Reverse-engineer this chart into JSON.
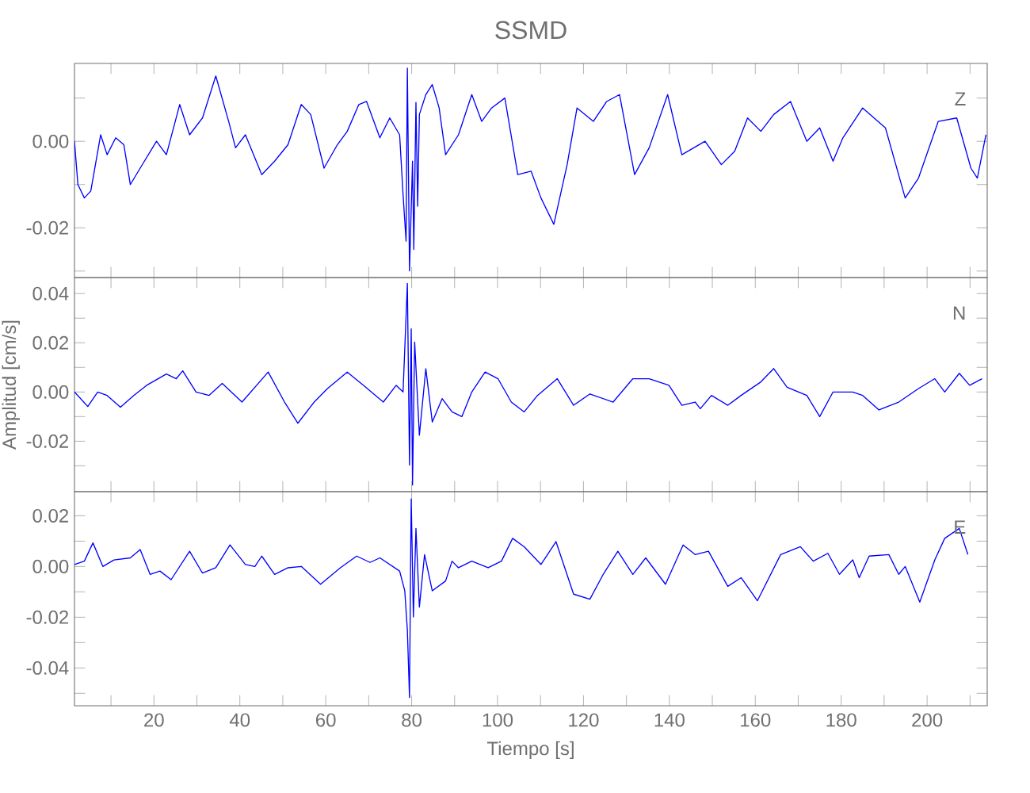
{
  "chart_data": [
    {
      "type": "line",
      "title": "SSMD",
      "annotations": [
        "Z"
      ],
      "color": "#0000ff",
      "tick_labels": "y",
      "xlim": [
        1.5,
        214
      ],
      "ylim": [
        -0.0315,
        0.018
      ],
      "xticks": [
        {
          "value": 10,
          "label": null
        },
        {
          "value": 20,
          "label": null
        },
        {
          "value": 30,
          "label": null
        },
        {
          "value": 40,
          "label": null
        },
        {
          "value": 50,
          "label": null
        },
        {
          "value": 60,
          "label": null
        },
        {
          "value": 70,
          "label": null
        },
        {
          "value": 80,
          "label": null
        },
        {
          "value": 90,
          "label": null
        },
        {
          "value": 100,
          "label": null
        },
        {
          "value": 110,
          "label": null
        },
        {
          "value": 120,
          "label": null
        },
        {
          "value": 130,
          "label": null
        },
        {
          "value": 140,
          "label": null
        },
        {
          "value": 150,
          "label": null
        },
        {
          "value": 160,
          "label": null
        },
        {
          "value": 170,
          "label": null
        },
        {
          "value": 180,
          "label": null
        },
        {
          "value": 190,
          "label": null
        },
        {
          "value": 200,
          "label": null
        },
        {
          "value": 210,
          "label": null
        }
      ],
      "yticks": [
        {
          "value": -0.03,
          "label": null
        },
        {
          "value": -0.02,
          "label": "-0.02"
        },
        {
          "value": -0.01,
          "label": null
        },
        {
          "value": 0,
          "label": "0.00"
        },
        {
          "value": 0.01,
          "label": null
        }
      ],
      "x": [
        1.5,
        2.3,
        3.8,
        5.3,
        7.6,
        9.1,
        11.1,
        13.0,
        14.5,
        16.8,
        20.6,
        22.9,
        26.0,
        28.3,
        31.3,
        34.4,
        37.4,
        39.0,
        41.3,
        45.1,
        48.1,
        51.2,
        54.3,
        56.5,
        59.6,
        62.7,
        65.0,
        67.7,
        69.5,
        72.6,
        74.9,
        77.2,
        78.0,
        78.7,
        79.0,
        79.5,
        80.2,
        80.5,
        81.0,
        81.4,
        81.8,
        83.3,
        84.8,
        86.4,
        87.9,
        90.9,
        94.0,
        96.3,
        98.6,
        101.7,
        104.7,
        107.8,
        110.1,
        113.1,
        116.2,
        118.5,
        122.3,
        125.4,
        128.4,
        131.9,
        135.3,
        139.6,
        142.9,
        148.3,
        152.1,
        155.2,
        158.2,
        161.3,
        164.3,
        168.2,
        172.0,
        175.0,
        178.1,
        180.4,
        185.0,
        190.3,
        194.9,
        198.0,
        202.6,
        206.9,
        210.2,
        211.7,
        213.7
      ],
      "values": [
        0.0,
        -0.01,
        -0.0131,
        -0.0115,
        0.0015,
        -0.0031,
        0.0008,
        -0.0008,
        -0.01,
        -0.0062,
        0.0,
        -0.0031,
        0.0085,
        0.0015,
        0.0054,
        0.0151,
        0.0046,
        -0.0015,
        0.0015,
        -0.0077,
        -0.0046,
        -0.0008,
        0.0085,
        0.0062,
        -0.0062,
        -0.0008,
        0.0023,
        0.0085,
        0.0092,
        0.0008,
        0.0054,
        0.0015,
        -0.0123,
        -0.0231,
        0.0169,
        -0.03,
        -0.0046,
        -0.025,
        0.009,
        -0.015,
        0.0062,
        0.0108,
        0.0131,
        0.0077,
        -0.0031,
        0.0015,
        0.0108,
        0.0046,
        0.0077,
        0.01,
        -0.0077,
        -0.0069,
        -0.0131,
        -0.0192,
        -0.0054,
        0.0077,
        0.0046,
        0.0092,
        0.0108,
        -0.0077,
        -0.0015,
        0.0108,
        -0.0031,
        0.0,
        -0.0054,
        -0.0023,
        0.0054,
        0.0023,
        0.0062,
        0.0092,
        0.0,
        0.0031,
        -0.0046,
        0.0008,
        0.0077,
        0.0031,
        -0.0131,
        -0.0085,
        0.0046,
        0.0054,
        -0.0062,
        -0.0085,
        0.0015
      ]
    },
    {
      "type": "line",
      "ylabel": "Amplitud [cm/s]",
      "annotations": [
        "N"
      ],
      "color": "#0000ff",
      "tick_labels": "y",
      "xlim": [
        1.5,
        214
      ],
      "ylim": [
        -0.0405,
        0.0465
      ],
      "xticks": [
        {
          "value": 10,
          "label": null
        },
        {
          "value": 20,
          "label": null
        },
        {
          "value": 30,
          "label": null
        },
        {
          "value": 40,
          "label": null
        },
        {
          "value": 50,
          "label": null
        },
        {
          "value": 60,
          "label": null
        },
        {
          "value": 70,
          "label": null
        },
        {
          "value": 80,
          "label": null
        },
        {
          "value": 90,
          "label": null
        },
        {
          "value": 100,
          "label": null
        },
        {
          "value": 110,
          "label": null
        },
        {
          "value": 120,
          "label": null
        },
        {
          "value": 130,
          "label": null
        },
        {
          "value": 140,
          "label": null
        },
        {
          "value": 150,
          "label": null
        },
        {
          "value": 160,
          "label": null
        },
        {
          "value": 170,
          "label": null
        },
        {
          "value": 180,
          "label": null
        },
        {
          "value": 190,
          "label": null
        },
        {
          "value": 200,
          "label": null
        },
        {
          "value": 210,
          "label": null
        }
      ],
      "yticks": [
        {
          "value": -0.03,
          "label": null
        },
        {
          "value": -0.02,
          "label": "-0.02"
        },
        {
          "value": -0.01,
          "label": null
        },
        {
          "value": 0,
          "label": "0.00"
        },
        {
          "value": 0.01,
          "label": null
        },
        {
          "value": 0.02,
          "label": "0.02"
        },
        {
          "value": 0.03,
          "label": null
        },
        {
          "value": 0.04,
          "label": "0.04"
        }
      ],
      "x": [
        1.5,
        4.6,
        6.9,
        9.1,
        12.2,
        15.3,
        18.3,
        22.9,
        25.2,
        26.7,
        29.8,
        32.8,
        35.9,
        40.5,
        46.6,
        50.4,
        53.5,
        57.3,
        60.4,
        65.0,
        68.8,
        73.4,
        76.4,
        78.0,
        79.0,
        79.5,
        79.9,
        80.2,
        80.7,
        81.8,
        83.3,
        84.8,
        87.1,
        89.4,
        91.7,
        94.0,
        97.1,
        100.1,
        103.2,
        106.2,
        109.3,
        113.9,
        117.7,
        121.5,
        126.9,
        131.5,
        135.3,
        139.9,
        142.9,
        146.0,
        147.2,
        149.8,
        153.6,
        156.7,
        161.3,
        164.3,
        167.4,
        172.0,
        175.0,
        178.1,
        182.7,
        185.0,
        188.8,
        193.4,
        198.0,
        201.8,
        204.1,
        207.5,
        209.9,
        212.8
      ],
      "values": [
        0.0,
        -0.0059,
        0.0,
        -0.0014,
        -0.0062,
        -0.0014,
        0.0027,
        0.0073,
        0.0054,
        0.0086,
        0.0,
        -0.0014,
        0.0035,
        -0.0041,
        0.0081,
        -0.0041,
        -0.0127,
        -0.0041,
        0.0014,
        0.0081,
        0.0027,
        -0.0041,
        0.0027,
        0.0,
        0.0441,
        -0.0297,
        0.0257,
        -0.0378,
        0.0203,
        -0.0176,
        0.0095,
        -0.0122,
        -0.0027,
        -0.0081,
        -0.01,
        0.0,
        0.0081,
        0.0054,
        -0.0041,
        -0.0081,
        -0.0014,
        0.0054,
        -0.0054,
        -0.0008,
        -0.0041,
        0.0054,
        0.0054,
        0.0027,
        -0.0054,
        -0.0041,
        -0.0068,
        -0.0014,
        -0.0054,
        -0.0014,
        0.0041,
        0.0095,
        0.0019,
        -0.0014,
        -0.01,
        0.0,
        0.0,
        -0.0014,
        -0.0073,
        -0.0041,
        0.0014,
        0.0054,
        0.0,
        0.0076,
        0.0027,
        0.0054
      ]
    },
    {
      "type": "line",
      "xlabel": "Tiempo [s]",
      "annotations": [
        "E"
      ],
      "color": "#0000ff",
      "xlim": [
        1.5,
        214
      ],
      "ylim": [
        -0.0549,
        0.0295
      ],
      "xticks": [
        {
          "value": 10,
          "label": null
        },
        20,
        {
          "value": 30,
          "label": null
        },
        40,
        {
          "value": 50,
          "label": null
        },
        60,
        {
          "value": 70,
          "label": null
        },
        80,
        {
          "value": 90,
          "label": null
        },
        100,
        {
          "value": 110,
          "label": null
        },
        120,
        {
          "value": 130,
          "label": null
        },
        140,
        {
          "value": 150,
          "label": null
        },
        160,
        {
          "value": 170,
          "label": null
        },
        180,
        {
          "value": 190,
          "label": null
        },
        200,
        {
          "value": 210,
          "label": null
        }
      ],
      "yticks": [
        {
          "value": -0.05,
          "label": null
        },
        {
          "value": -0.04,
          "label": "-0.04"
        },
        {
          "value": -0.03,
          "label": null
        },
        {
          "value": -0.02,
          "label": "-0.02"
        },
        {
          "value": -0.01,
          "label": null
        },
        {
          "value": 0,
          "label": "0.00"
        },
        {
          "value": 0.01,
          "label": null
        },
        {
          "value": 0.02,
          "label": "0.02"
        }
      ],
      "x": [
        1.5,
        3.8,
        5.8,
        8.1,
        10.7,
        14.5,
        16.8,
        19.1,
        21.4,
        24.0,
        28.3,
        31.3,
        34.4,
        37.7,
        41.3,
        43.5,
        45.1,
        48.1,
        51.2,
        54.3,
        58.8,
        63.4,
        67.2,
        70.3,
        72.6,
        77.2,
        78.4,
        79.0,
        79.5,
        79.8,
        79.9,
        80.4,
        81.0,
        81.8,
        83.0,
        84.8,
        87.9,
        89.4,
        90.9,
        94.0,
        97.8,
        100.9,
        103.5,
        106.2,
        110.1,
        113.6,
        117.7,
        121.5,
        124.6,
        128.0,
        131.5,
        134.5,
        139.1,
        143.2,
        146.0,
        149.1,
        153.6,
        156.7,
        160.5,
        165.9,
        170.5,
        173.5,
        176.9,
        179.6,
        182.7,
        184.2,
        186.5,
        191.1,
        193.4,
        194.9,
        198.3,
        201.8,
        204.1,
        207.5,
        209.5
      ],
      "values": [
        0.0008,
        0.0021,
        0.0093,
        0.0,
        0.0026,
        0.0034,
        0.0067,
        -0.0031,
        -0.0018,
        -0.0052,
        0.006,
        -0.0026,
        -0.0005,
        0.0085,
        0.0008,
        0.0,
        0.0041,
        -0.0031,
        -0.0005,
        0.0,
        -0.007,
        -0.0005,
        0.0041,
        0.0016,
        0.0034,
        -0.0018,
        -0.0096,
        -0.0251,
        -0.0517,
        0.0098,
        0.0266,
        -0.0199,
        0.015,
        -0.016,
        0.0047,
        -0.0096,
        -0.0057,
        0.0021,
        -0.0005,
        0.0021,
        -0.0005,
        0.0021,
        0.0111,
        0.0078,
        0.0008,
        0.0098,
        -0.0109,
        -0.0129,
        -0.0031,
        0.006,
        -0.0031,
        0.0034,
        -0.007,
        0.0085,
        0.0047,
        0.006,
        -0.0078,
        -0.0044,
        -0.0135,
        0.0047,
        0.0078,
        0.0021,
        0.0052,
        -0.0031,
        0.0026,
        -0.0044,
        0.0041,
        0.0047,
        -0.0031,
        0.0,
        -0.014,
        0.0026,
        0.0111,
        0.015,
        0.0047
      ]
    }
  ]
}
